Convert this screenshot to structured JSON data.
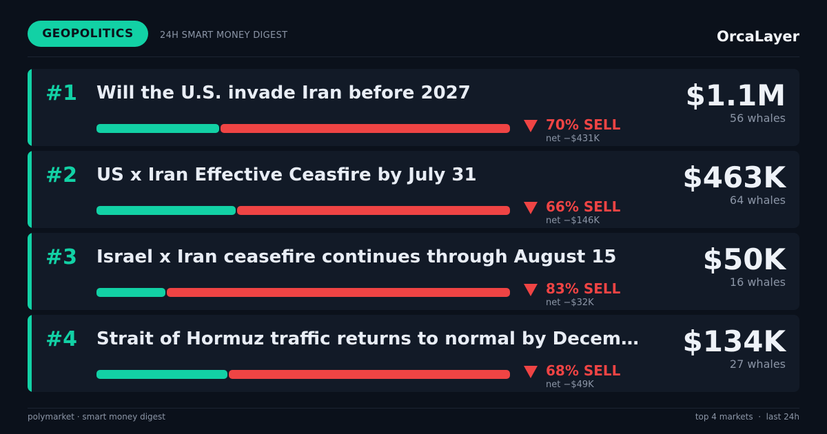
{
  "header": {
    "tag": "GEOPOLITICS",
    "subtitle": "24H SMART MONEY DIGEST",
    "brand": "OrcaLayer"
  },
  "markets": [
    {
      "rank": "#1",
      "title": "Will the U.S. invade Iran before 2027",
      "sell_pct": 70,
      "sell_label": "70% SELL",
      "net": "net −$431K",
      "volume": "$1.1M",
      "whales": "56 whales"
    },
    {
      "rank": "#2",
      "title": "US x Iran Effective Ceasfire by July 31",
      "sell_pct": 66,
      "sell_label": "66% SELL",
      "net": "net −$146K",
      "volume": "$463K",
      "whales": "64 whales"
    },
    {
      "rank": "#3",
      "title": "Israel x Iran ceasefire continues through August 15",
      "sell_pct": 83,
      "sell_label": "83% SELL",
      "net": "net −$32K",
      "volume": "$50K",
      "whales": "16 whales"
    },
    {
      "rank": "#4",
      "title": "Strait of Hormuz traffic returns to normal by Decem…",
      "sell_pct": 68,
      "sell_label": "68% SELL",
      "net": "net −$49K",
      "volume": "$134K",
      "whales": "27 whales"
    }
  ],
  "footer": {
    "left": "polymarket · smart money digest",
    "right": "top 4 markets  ·  last 24h"
  }
}
